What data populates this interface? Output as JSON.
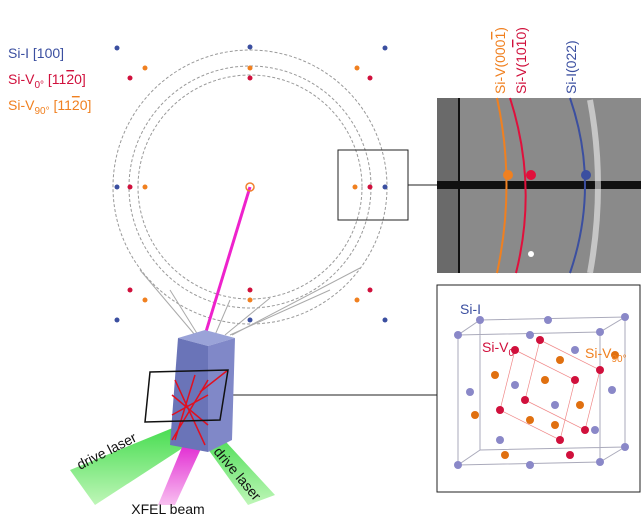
{
  "legend": [
    {
      "name": "Si-I",
      "direction": "[100]"
    },
    {
      "name": "Si-V",
      "subscript": "0°",
      "direction_start": "[11",
      "direction_bar": "2",
      "direction_end": "0]"
    },
    {
      "name": "Si-V",
      "subscript": "90°",
      "direction_start": "[11",
      "direction_bar": "2",
      "direction_end": "0]"
    }
  ],
  "rings": [
    {
      "start": "Si-V(000",
      "bar": "1",
      "end": ")"
    },
    {
      "start": "Si-V(10",
      "bar": "1",
      "end": "0)"
    },
    {
      "label": "Si-I(022)"
    }
  ],
  "crystal": [
    {
      "name": "Si-I"
    },
    {
      "name": "Si-V",
      "subscript": "0°"
    },
    {
      "name": "Si-V",
      "subscript": "90°"
    }
  ],
  "beams": {
    "laser_left": "drive laser",
    "laser_right": "drive laser",
    "xfel": "XFEL beam"
  }
}
